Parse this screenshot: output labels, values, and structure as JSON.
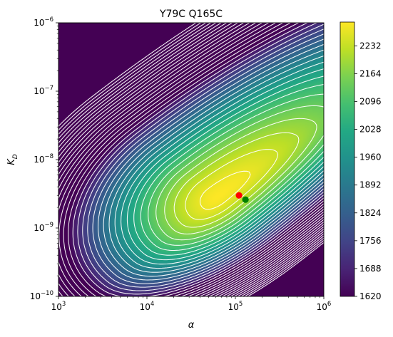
{
  "chart_data": {
    "type": "heatmap",
    "title": "Y79C Q165C",
    "xlabel": "α",
    "ylabel_main": "K",
    "ylabel_sub": "D",
    "x_scale": "log",
    "y_scale": "log",
    "xlim": [
      1000,
      1000000
    ],
    "ylim": [
      1e-10,
      1e-06
    ],
    "x_ticks": [
      {
        "base": "10",
        "exp": "3",
        "value": 1000
      },
      {
        "base": "10",
        "exp": "4",
        "value": 10000
      },
      {
        "base": "10",
        "exp": "5",
        "value": 100000
      },
      {
        "base": "10",
        "exp": "6",
        "value": 1000000
      }
    ],
    "y_ticks": [
      {
        "base": "10",
        "exp": "−10",
        "value": 1e-10
      },
      {
        "base": "10",
        "exp": "−9",
        "value": 1e-09
      },
      {
        "base": "10",
        "exp": "−8",
        "value": 1e-08
      },
      {
        "base": "10",
        "exp": "−7",
        "value": 1e-07
      },
      {
        "base": "10",
        "exp": "−6",
        "value": 1e-06
      }
    ],
    "colorbar": {
      "colormap": "viridis",
      "range": [
        1620,
        2290
      ],
      "ticks": [
        "1620",
        "1688",
        "1756",
        "1824",
        "1892",
        "1960",
        "2028",
        "2096",
        "2164",
        "2232"
      ]
    },
    "surface": {
      "peak_value": 2290,
      "peak_log_alpha": 4.8,
      "peak_log_kd": -8.55
    },
    "markers": [
      {
        "name": "red",
        "color": "#ff0000",
        "alpha": 110000,
        "kd": 3e-09
      },
      {
        "name": "green",
        "color": "#008000",
        "alpha": 130000,
        "kd": 2.6e-09
      }
    ],
    "grid": false
  }
}
